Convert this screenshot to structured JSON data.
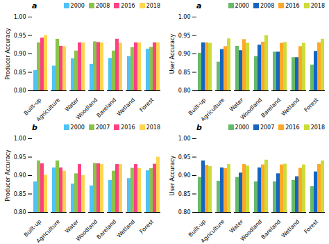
{
  "chart_data": [
    {
      "type": "bar",
      "title": "a",
      "ylabel": "Producer Accuracy",
      "categories": [
        "Built-up",
        "Agriculture",
        "Water",
        "Woodland",
        "Bareland",
        "Wetland",
        "Forest"
      ],
      "series": [
        {
          "name": "2000",
          "color": "#4FC3F7",
          "values": [
            0.855,
            0.867,
            0.887,
            0.872,
            0.888,
            0.893,
            0.913
          ]
        },
        {
          "name": "2008",
          "color": "#8BC34A",
          "values": [
            0.93,
            0.94,
            0.908,
            0.933,
            0.908,
            0.917,
            0.918
          ]
        },
        {
          "name": "2016",
          "color": "#FF4081",
          "values": [
            0.943,
            0.921,
            0.93,
            0.931,
            0.94,
            0.93,
            0.93
          ]
        },
        {
          "name": "2018",
          "color": "#FFD54F",
          "values": [
            0.95,
            0.92,
            0.93,
            0.93,
            0.929,
            0.93,
            0.93
          ]
        }
      ],
      "ylim": [
        0.8,
        1.0
      ],
      "yticks": [
        {
          "value": 0.8,
          "label": "0.80"
        },
        0.85,
        {
          "value": 0.9,
          "label": "0.90"
        },
        0.95,
        {
          "value": 1.0,
          "label": "1.00"
        }
      ],
      "legend": "upper right",
      "grid": false
    },
    {
      "type": "bar",
      "title": "a",
      "ylabel": "User Accuracy",
      "categories": [
        "Built-up",
        "Agriculture",
        "Water",
        "Woodland",
        "Bareland",
        "Wetland",
        "Forest"
      ],
      "series": [
        {
          "name": "2000",
          "color": "#66BB6A",
          "values": [
            0.902,
            0.878,
            0.921,
            0.893,
            0.905,
            0.89,
            0.87
          ]
        },
        {
          "name": "2008",
          "color": "#1565C0",
          "values": [
            0.93,
            0.912,
            0.909,
            0.924,
            0.905,
            0.89,
            0.907
          ]
        },
        {
          "name": "2016",
          "color": "#FFA726",
          "values": [
            0.93,
            0.92,
            0.939,
            0.932,
            0.929,
            0.92,
            0.93
          ]
        },
        {
          "name": "2018",
          "color": "#CDDC39",
          "values": [
            0.929,
            0.941,
            0.929,
            0.95,
            0.931,
            0.929,
            0.94
          ]
        }
      ],
      "ylim": [
        0.8,
        1.0
      ],
      "yticks": [
        {
          "value": 0.8,
          "label": "0.80"
        },
        0.85,
        {
          "value": 0.9,
          "label": "0.90"
        },
        0.95,
        {
          "value": 1.0,
          "label": "1.00"
        }
      ],
      "legend": "upper right",
      "grid": false
    },
    {
      "type": "bar",
      "title": "b",
      "ylabel": "Producer Accuracy",
      "categories": [
        "Built-up",
        "Agriculture",
        "Water",
        "Woodland",
        "Bareland",
        "Wetland",
        "Forest"
      ],
      "series": [
        {
          "name": "2000",
          "color": "#4FC3F7",
          "values": [
            0.883,
            0.921,
            0.877,
            0.872,
            0.887,
            0.892,
            0.913
          ]
        },
        {
          "name": "2007",
          "color": "#8BC34A",
          "values": [
            0.94,
            0.94,
            0.905,
            0.933,
            0.912,
            0.92,
            0.919
          ]
        },
        {
          "name": "2016",
          "color": "#FF4081",
          "values": [
            0.932,
            0.921,
            0.93,
            0.932,
            0.93,
            0.93,
            0.931
          ]
        },
        {
          "name": "2018",
          "color": "#FFD54F",
          "values": [
            0.901,
            0.912,
            0.9,
            0.93,
            0.93,
            0.919,
            0.95
          ]
        }
      ],
      "ylim": [
        0.8,
        1.0
      ],
      "yticks": [
        {
          "value": 0.8,
          "label": "0.80"
        },
        0.85,
        {
          "value": 0.9,
          "label": "0.90"
        },
        0.95,
        {
          "value": 1.0,
          "label": "1.00"
        }
      ],
      "legend": "upper right",
      "grid": false
    },
    {
      "type": "bar",
      "title": "b",
      "ylabel": "User Accuracy",
      "categories": [
        "Built-up",
        "Agriculture",
        "Water",
        "Woodland",
        "Bareland",
        "Wetland",
        "Forest"
      ],
      "series": [
        {
          "name": "2000",
          "color": "#66BB6A",
          "values": [
            0.895,
            0.885,
            0.895,
            0.883,
            0.883,
            0.887,
            0.87
          ]
        },
        {
          "name": "2007",
          "color": "#1565C0",
          "values": [
            0.94,
            0.921,
            0.907,
            0.921,
            0.905,
            0.897,
            0.91
          ]
        },
        {
          "name": "2016",
          "color": "#FFA726",
          "values": [
            0.928,
            0.919,
            0.93,
            0.929,
            0.929,
            0.92,
            0.93
          ]
        },
        {
          "name": "2018",
          "color": "#CDDC39",
          "values": [
            0.925,
            0.93,
            0.926,
            0.942,
            0.931,
            0.929,
            0.94
          ]
        }
      ],
      "ylim": [
        0.8,
        1.0
      ],
      "yticks": [
        {
          "value": 0.8,
          "label": "0.80"
        },
        0.85,
        {
          "value": 0.9,
          "label": "0.90"
        },
        0.95,
        {
          "value": 1.0,
          "label": "1.00"
        }
      ],
      "legend": "upper right",
      "grid": false
    }
  ]
}
